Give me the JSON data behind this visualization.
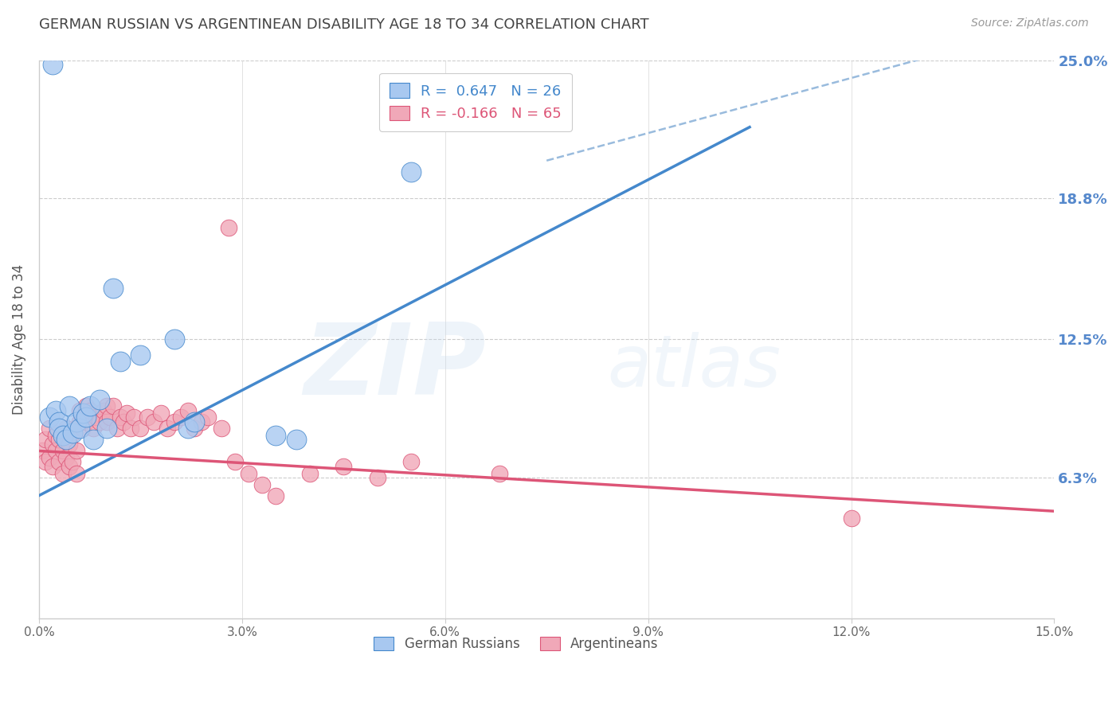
{
  "title": "GERMAN RUSSIAN VS ARGENTINEAN DISABILITY AGE 18 TO 34 CORRELATION CHART",
  "source": "Source: ZipAtlas.com",
  "ylabel": "Disability Age 18 to 34",
  "xlim": [
    0.0,
    15.0
  ],
  "ylim": [
    0.0,
    25.0
  ],
  "yticks": [
    6.3,
    12.5,
    18.8,
    25.0
  ],
  "ytick_labels": [
    "6.3%",
    "12.5%",
    "18.8%",
    "25.0%"
  ],
  "xticks": [
    0.0,
    3.0,
    6.0,
    9.0,
    12.0,
    15.0
  ],
  "xtick_labels": [
    "0.0%",
    "3.0%",
    "6.0%",
    "9.0%",
    "12.0%",
    "15.0%"
  ],
  "watermark_zip": "ZIP",
  "watermark_atlas": "atlas",
  "legend_blue_label": "R =  0.647   N = 26",
  "legend_pink_label": "R = -0.166   N = 65",
  "legend_blue_color": "#a8c8f0",
  "legend_pink_color": "#f0a8b8",
  "blue_line_color": "#4488cc",
  "pink_line_color": "#dd5577",
  "dashed_line_color": "#99bbdd",
  "right_label_color": "#5588cc",
  "title_color": "#444444",
  "blue_scatter": [
    [
      0.15,
      9.0
    ],
    [
      0.25,
      9.3
    ],
    [
      0.3,
      8.8
    ],
    [
      0.3,
      8.5
    ],
    [
      0.35,
      8.2
    ],
    [
      0.4,
      8.0
    ],
    [
      0.45,
      9.5
    ],
    [
      0.5,
      8.3
    ],
    [
      0.55,
      8.8
    ],
    [
      0.6,
      8.5
    ],
    [
      0.65,
      9.2
    ],
    [
      0.7,
      9.0
    ],
    [
      0.75,
      9.5
    ],
    [
      0.8,
      8.0
    ],
    [
      0.9,
      9.8
    ],
    [
      1.0,
      8.5
    ],
    [
      1.1,
      14.8
    ],
    [
      1.2,
      11.5
    ],
    [
      1.5,
      11.8
    ],
    [
      2.0,
      12.5
    ],
    [
      2.2,
      8.5
    ],
    [
      2.3,
      8.8
    ],
    [
      3.5,
      8.2
    ],
    [
      3.8,
      8.0
    ],
    [
      5.5,
      20.0
    ],
    [
      0.2,
      24.8
    ]
  ],
  "pink_scatter": [
    [
      0.05,
      7.5
    ],
    [
      0.1,
      8.0
    ],
    [
      0.1,
      7.0
    ],
    [
      0.15,
      8.5
    ],
    [
      0.15,
      7.2
    ],
    [
      0.2,
      7.8
    ],
    [
      0.2,
      6.8
    ],
    [
      0.25,
      8.2
    ],
    [
      0.25,
      7.5
    ],
    [
      0.3,
      7.0
    ],
    [
      0.3,
      8.0
    ],
    [
      0.35,
      7.5
    ],
    [
      0.35,
      6.5
    ],
    [
      0.4,
      8.5
    ],
    [
      0.4,
      7.2
    ],
    [
      0.45,
      7.8
    ],
    [
      0.45,
      6.8
    ],
    [
      0.5,
      8.3
    ],
    [
      0.5,
      7.0
    ],
    [
      0.55,
      7.5
    ],
    [
      0.55,
      6.5
    ],
    [
      0.6,
      8.8
    ],
    [
      0.6,
      9.3
    ],
    [
      0.65,
      9.0
    ],
    [
      0.65,
      8.5
    ],
    [
      0.7,
      9.5
    ],
    [
      0.7,
      8.8
    ],
    [
      0.75,
      9.3
    ],
    [
      0.8,
      8.5
    ],
    [
      0.85,
      9.0
    ],
    [
      0.9,
      8.8
    ],
    [
      0.95,
      9.3
    ],
    [
      1.0,
      9.5
    ],
    [
      1.0,
      8.8
    ],
    [
      1.05,
      9.0
    ],
    [
      1.1,
      9.5
    ],
    [
      1.15,
      8.5
    ],
    [
      1.2,
      9.0
    ],
    [
      1.25,
      8.8
    ],
    [
      1.3,
      9.2
    ],
    [
      1.35,
      8.5
    ],
    [
      1.4,
      9.0
    ],
    [
      1.5,
      8.5
    ],
    [
      1.6,
      9.0
    ],
    [
      1.7,
      8.8
    ],
    [
      1.8,
      9.2
    ],
    [
      1.9,
      8.5
    ],
    [
      2.0,
      8.8
    ],
    [
      2.1,
      9.0
    ],
    [
      2.2,
      9.3
    ],
    [
      2.3,
      8.5
    ],
    [
      2.4,
      8.8
    ],
    [
      2.5,
      9.0
    ],
    [
      2.7,
      8.5
    ],
    [
      2.9,
      7.0
    ],
    [
      3.1,
      6.5
    ],
    [
      3.3,
      6.0
    ],
    [
      3.5,
      5.5
    ],
    [
      4.0,
      6.5
    ],
    [
      4.5,
      6.8
    ],
    [
      5.0,
      6.3
    ],
    [
      5.5,
      7.0
    ],
    [
      6.8,
      6.5
    ],
    [
      12.0,
      4.5
    ],
    [
      2.8,
      17.5
    ]
  ],
  "blue_line_x": [
    0.0,
    10.5
  ],
  "blue_line_y": [
    5.5,
    22.0
  ],
  "pink_line_x": [
    0.0,
    15.0
  ],
  "pink_line_y": [
    7.5,
    4.8
  ],
  "dashed_line_x": [
    7.5,
    14.8
  ],
  "dashed_line_y": [
    20.5,
    26.5
  ]
}
